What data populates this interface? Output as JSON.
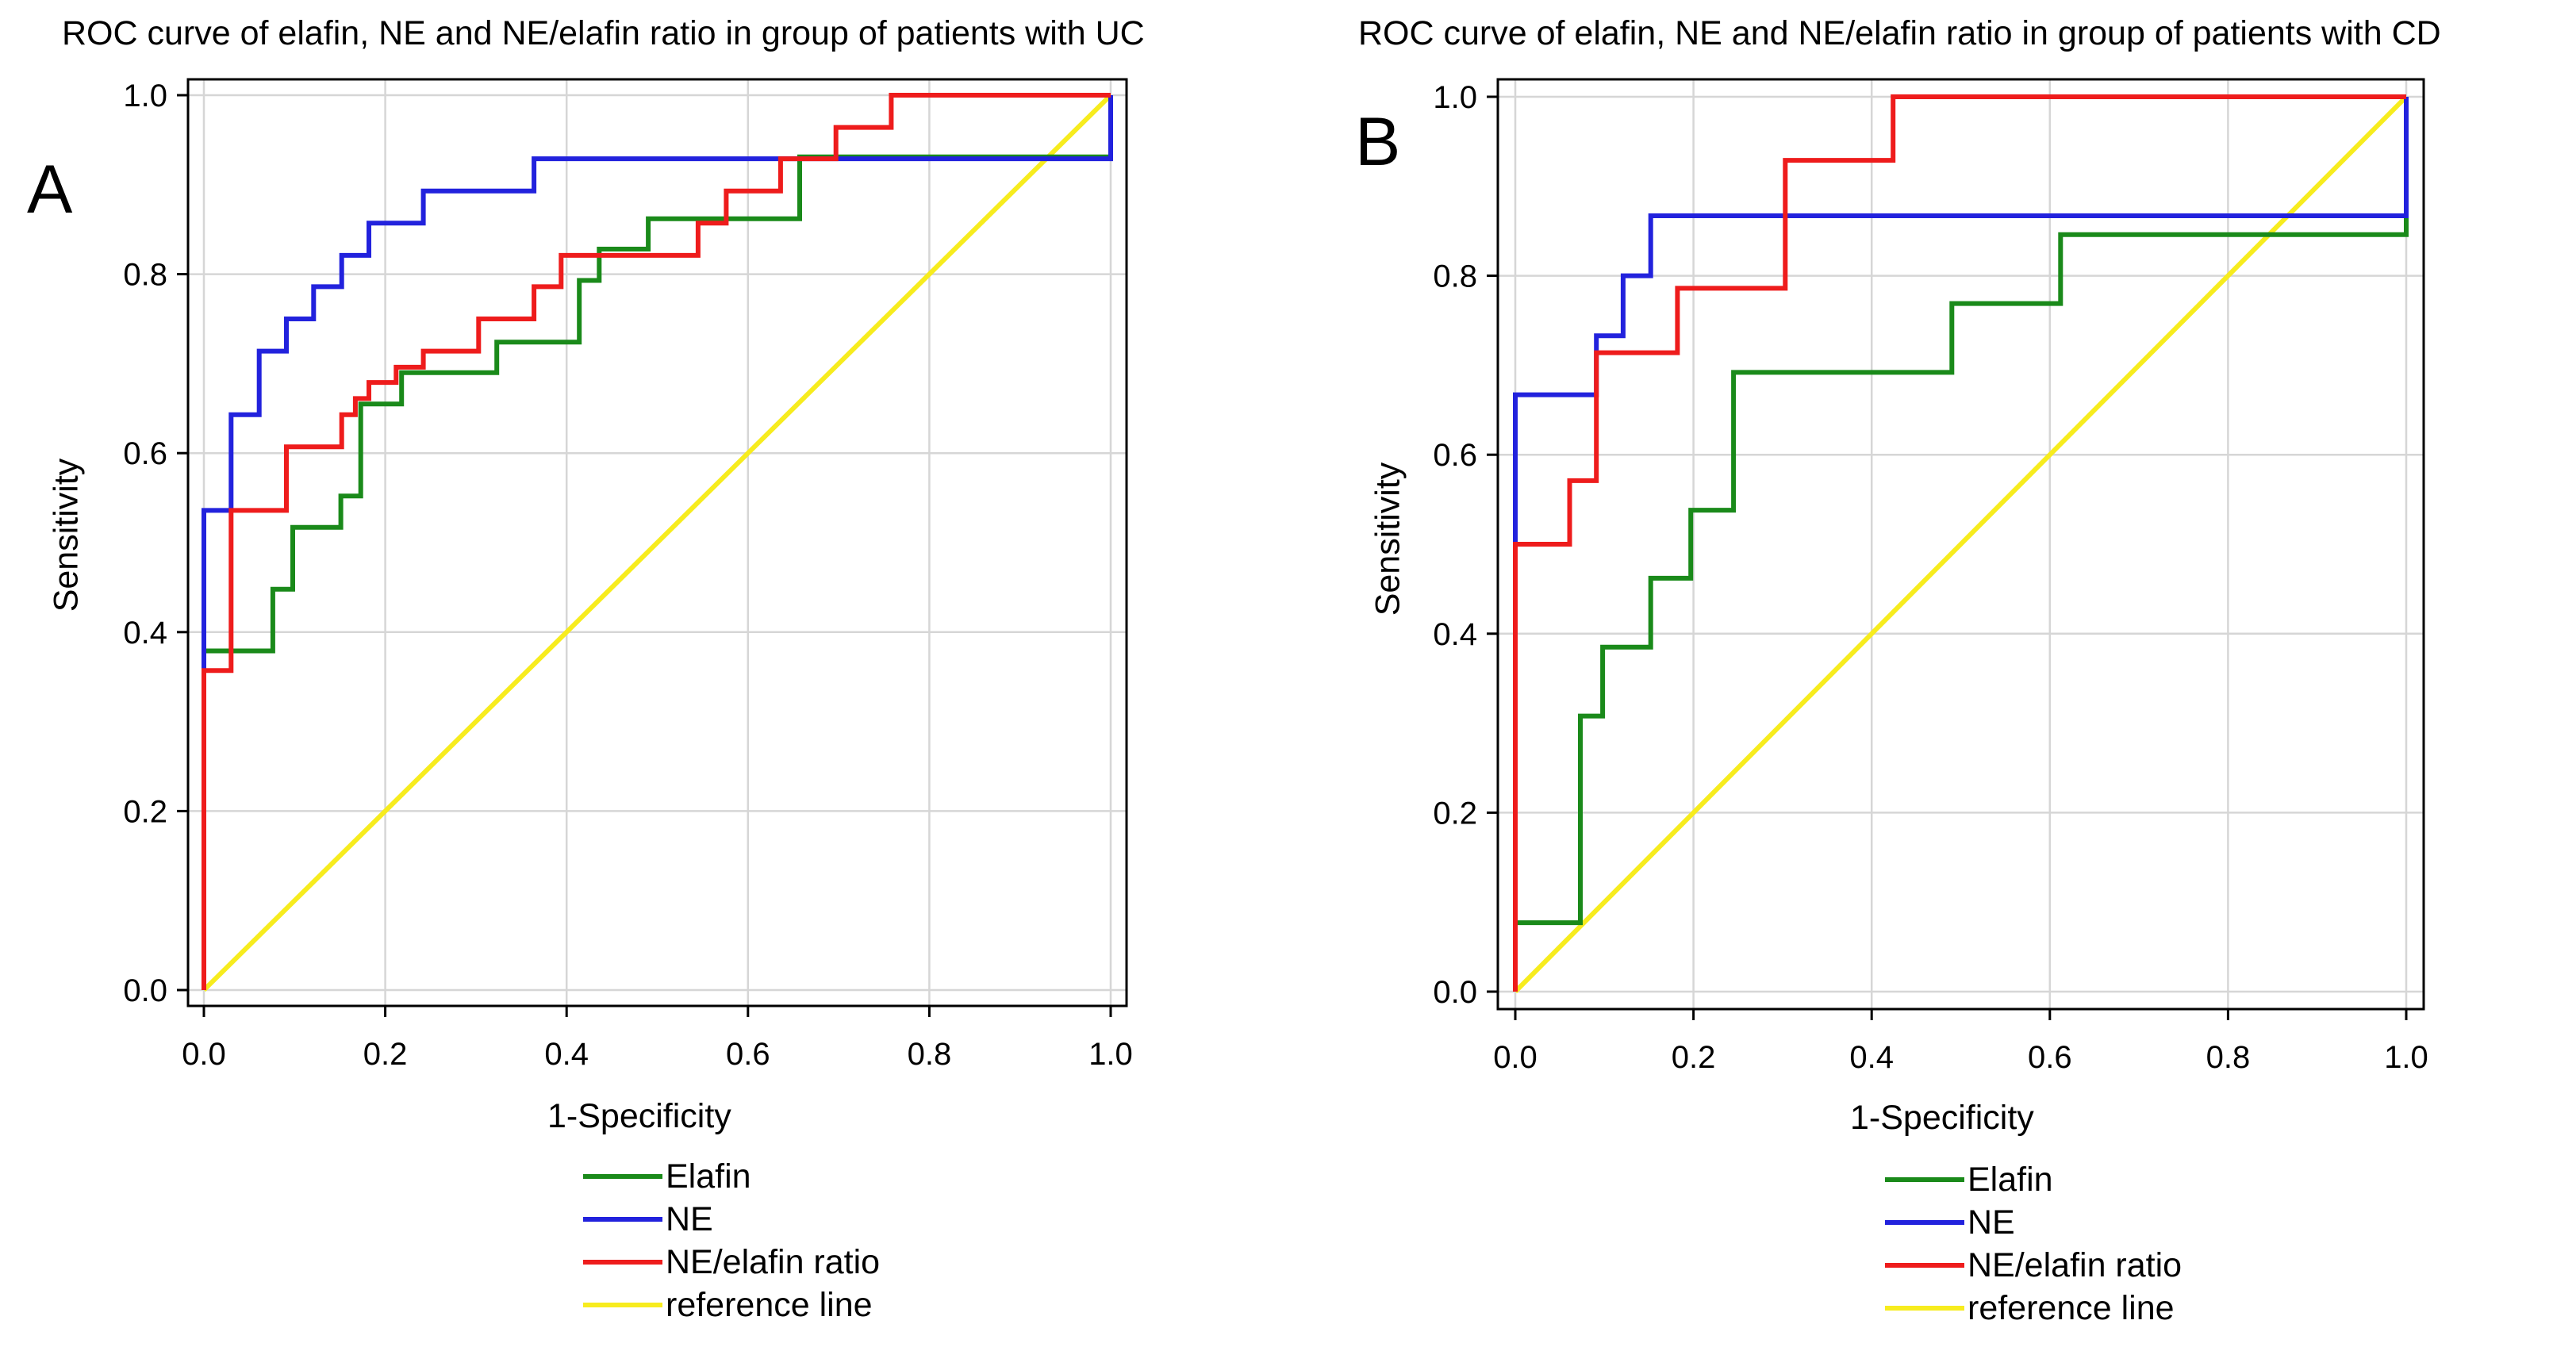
{
  "chart_data": [
    {
      "type": "line",
      "panel_label": "A",
      "title": "ROC curve of elafin, NE and NE/elafin ratio in group of patients with UC",
      "xlabel": "1-Specificity",
      "ylabel": "Sensitivity",
      "xlim": [
        0,
        1
      ],
      "ylim": [
        0,
        1
      ],
      "x_ticks": [
        "0.0",
        "0.2",
        "0.4",
        "0.6",
        "0.8",
        "1.0"
      ],
      "y_ticks": [
        "0.0",
        "0.2",
        "0.4",
        "0.6",
        "0.8",
        "1.0"
      ],
      "grid": true,
      "legend_position": "bottom",
      "series": [
        {
          "name": "Elafin",
          "color": "#1a8a1a",
          "step": true,
          "points": [
            [
              0,
              0
            ],
            [
              0,
              0.379
            ],
            [
              0.076,
              0.379
            ],
            [
              0.076,
              0.448
            ],
            [
              0.098,
              0.448
            ],
            [
              0.098,
              0.517
            ],
            [
              0.151,
              0.517
            ],
            [
              0.151,
              0.552
            ],
            [
              0.173,
              0.552
            ],
            [
              0.173,
              0.655
            ],
            [
              0.218,
              0.655
            ],
            [
              0.218,
              0.69
            ],
            [
              0.323,
              0.69
            ],
            [
              0.323,
              0.724
            ],
            [
              0.414,
              0.724
            ],
            [
              0.414,
              0.793
            ],
            [
              0.436,
              0.793
            ],
            [
              0.436,
              0.828
            ],
            [
              0.49,
              0.828
            ],
            [
              0.49,
              0.862
            ],
            [
              0.657,
              0.862
            ],
            [
              0.657,
              0.931
            ],
            [
              1,
              0.931
            ],
            [
              1,
              1
            ]
          ]
        },
        {
          "name": "NE",
          "color": "#2222dd",
          "step": true,
          "points": [
            [
              0,
              0
            ],
            [
              0,
              0.536
            ],
            [
              0.03,
              0.536
            ],
            [
              0.03,
              0.643
            ],
            [
              0.061,
              0.643
            ],
            [
              0.061,
              0.714
            ],
            [
              0.091,
              0.714
            ],
            [
              0.091,
              0.75
            ],
            [
              0.121,
              0.75
            ],
            [
              0.121,
              0.786
            ],
            [
              0.152,
              0.786
            ],
            [
              0.152,
              0.821
            ],
            [
              0.182,
              0.821
            ],
            [
              0.182,
              0.857
            ],
            [
              0.242,
              0.857
            ],
            [
              0.242,
              0.893
            ],
            [
              0.364,
              0.893
            ],
            [
              0.364,
              0.929
            ],
            [
              1,
              0.929
            ],
            [
              1,
              1
            ]
          ]
        },
        {
          "name": "NE/elafin ratio",
          "color": "#ee1c1c",
          "step": true,
          "points": [
            [
              0,
              0
            ],
            [
              0,
              0.357
            ],
            [
              0.03,
              0.357
            ],
            [
              0.03,
              0.536
            ],
            [
              0.091,
              0.536
            ],
            [
              0.091,
              0.607
            ],
            [
              0.152,
              0.607
            ],
            [
              0.152,
              0.643
            ],
            [
              0.167,
              0.643
            ],
            [
              0.167,
              0.661
            ],
            [
              0.182,
              0.661
            ],
            [
              0.182,
              0.679
            ],
            [
              0.212,
              0.679
            ],
            [
              0.212,
              0.696
            ],
            [
              0.242,
              0.696
            ],
            [
              0.242,
              0.714
            ],
            [
              0.303,
              0.714
            ],
            [
              0.303,
              0.75
            ],
            [
              0.364,
              0.75
            ],
            [
              0.364,
              0.786
            ],
            [
              0.394,
              0.786
            ],
            [
              0.394,
              0.821
            ],
            [
              0.545,
              0.821
            ],
            [
              0.545,
              0.857
            ],
            [
              0.576,
              0.857
            ],
            [
              0.576,
              0.893
            ],
            [
              0.636,
              0.893
            ],
            [
              0.636,
              0.929
            ],
            [
              0.697,
              0.929
            ],
            [
              0.697,
              0.964
            ],
            [
              0.758,
              0.964
            ],
            [
              0.758,
              1
            ],
            [
              1,
              1
            ]
          ]
        },
        {
          "name": "reference line",
          "color": "#f7ec1e",
          "step": false,
          "points": [
            [
              0,
              0
            ],
            [
              1,
              1
            ]
          ]
        }
      ]
    },
    {
      "type": "line",
      "panel_label": "B",
      "title": "ROC curve of elafin, NE and NE/elafin ratio in group of patients with CD",
      "xlabel": "1-Specificity",
      "ylabel": "Sensitivity",
      "xlim": [
        0,
        1
      ],
      "ylim": [
        0,
        1
      ],
      "x_ticks": [
        "0.0",
        "0.2",
        "0.4",
        "0.6",
        "0.8",
        "1.0"
      ],
      "y_ticks": [
        "0.0",
        "0.2",
        "0.4",
        "0.6",
        "0.8",
        "1.0"
      ],
      "grid": true,
      "legend_position": "bottom",
      "series": [
        {
          "name": "Elafin",
          "color": "#1a8a1a",
          "step": true,
          "points": [
            [
              0,
              0
            ],
            [
              0,
              0.077
            ],
            [
              0.073,
              0.077
            ],
            [
              0.073,
              0.308
            ],
            [
              0.098,
              0.308
            ],
            [
              0.098,
              0.385
            ],
            [
              0.152,
              0.385
            ],
            [
              0.152,
              0.462
            ],
            [
              0.197,
              0.462
            ],
            [
              0.197,
              0.538
            ],
            [
              0.245,
              0.538
            ],
            [
              0.245,
              0.692
            ],
            [
              0.49,
              0.692
            ],
            [
              0.49,
              0.769
            ],
            [
              0.612,
              0.769
            ],
            [
              0.612,
              0.846
            ],
            [
              1,
              0.846
            ],
            [
              1,
              1
            ]
          ]
        },
        {
          "name": "NE",
          "color": "#2222dd",
          "step": true,
          "points": [
            [
              0,
              0
            ],
            [
              0,
              0.667
            ],
            [
              0.091,
              0.667
            ],
            [
              0.091,
              0.733
            ],
            [
              0.121,
              0.733
            ],
            [
              0.121,
              0.8
            ],
            [
              0.152,
              0.8
            ],
            [
              0.152,
              0.867
            ],
            [
              1,
              0.867
            ],
            [
              1,
              1
            ]
          ]
        },
        {
          "name": "NE/elafin ratio",
          "color": "#ee1c1c",
          "step": true,
          "points": [
            [
              0,
              0
            ],
            [
              0,
              0.5
            ],
            [
              0.061,
              0.5
            ],
            [
              0.061,
              0.571
            ],
            [
              0.091,
              0.571
            ],
            [
              0.091,
              0.714
            ],
            [
              0.182,
              0.714
            ],
            [
              0.182,
              0.786
            ],
            [
              0.303,
              0.786
            ],
            [
              0.303,
              0.929
            ],
            [
              0.424,
              0.929
            ],
            [
              0.424,
              1
            ],
            [
              1,
              1
            ]
          ]
        },
        {
          "name": "reference line",
          "color": "#f7ec1e",
          "step": false,
          "points": [
            [
              0,
              0
            ],
            [
              1,
              1
            ]
          ]
        }
      ]
    }
  ]
}
